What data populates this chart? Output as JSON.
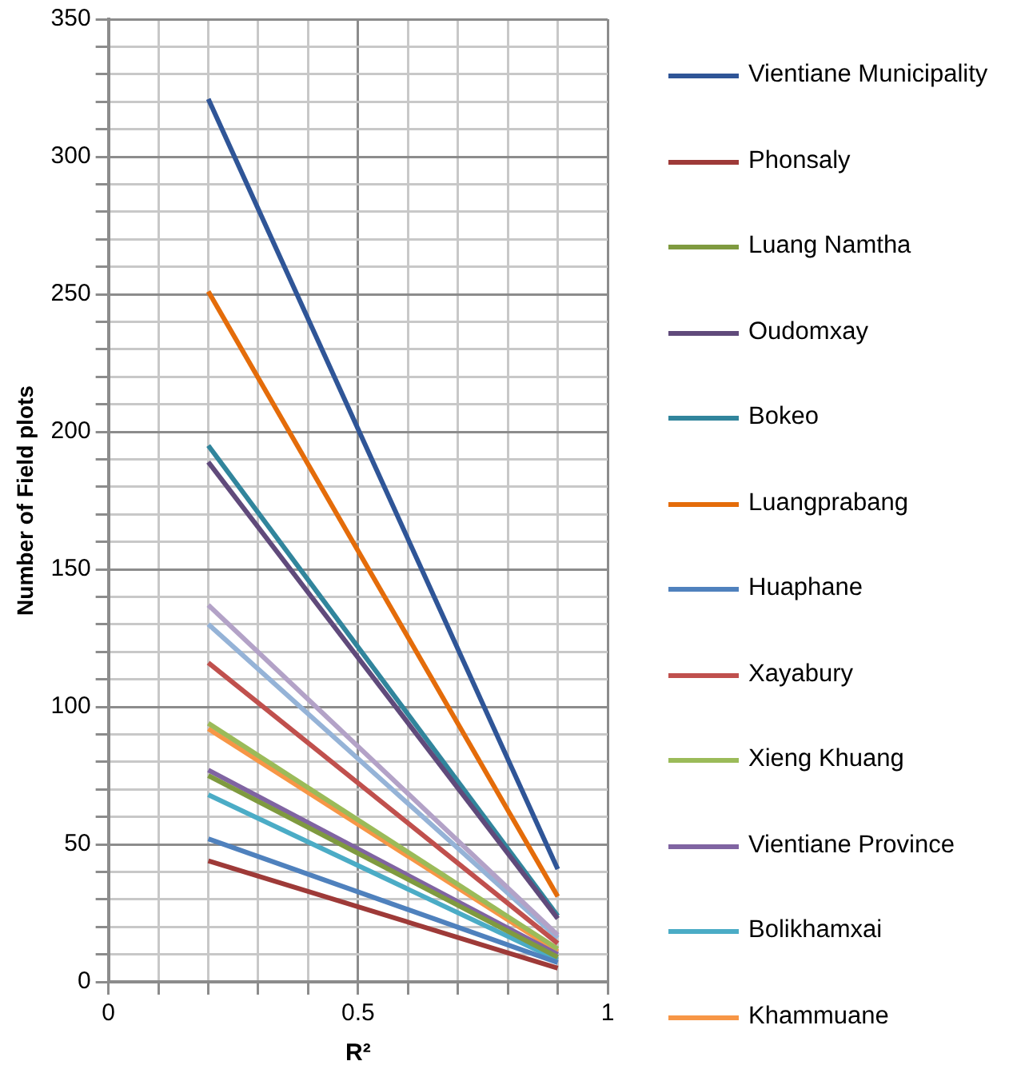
{
  "chart_data": {
    "type": "line",
    "xlabel": "R²",
    "ylabel": "Number of Field plots",
    "xlim": [
      0,
      1
    ],
    "xticks": [
      0,
      {
        "value": 0.1,
        "label": null
      },
      {
        "value": 0.2,
        "label": null
      },
      {
        "value": 0.3,
        "label": null
      },
      {
        "value": 0.4,
        "label": null
      },
      0.5,
      {
        "value": 0.6,
        "label": null
      },
      {
        "value": 0.7,
        "label": null
      },
      {
        "value": 0.8,
        "label": null
      },
      {
        "value": 0.9,
        "label": null
      },
      1
    ],
    "ylim": [
      0,
      350
    ],
    "yticks": [
      0,
      {
        "value": 10,
        "label": null
      },
      {
        "value": 20,
        "label": null
      },
      {
        "value": 30,
        "label": null
      },
      {
        "value": 40,
        "label": null
      },
      50,
      {
        "value": 60,
        "label": null
      },
      {
        "value": 70,
        "label": null
      },
      {
        "value": 80,
        "label": null
      },
      {
        "value": 90,
        "label": null
      },
      100,
      {
        "value": 110,
        "label": null
      },
      {
        "value": 120,
        "label": null
      },
      {
        "value": 130,
        "label": null
      },
      {
        "value": 140,
        "label": null
      },
      150,
      {
        "value": 160,
        "label": null
      },
      {
        "value": 170,
        "label": null
      },
      {
        "value": 180,
        "label": null
      },
      {
        "value": 190,
        "label": null
      },
      200,
      {
        "value": 210,
        "label": null
      },
      {
        "value": 220,
        "label": null
      },
      {
        "value": 230,
        "label": null
      },
      {
        "value": 240,
        "label": null
      },
      250,
      {
        "value": 260,
        "label": null
      },
      {
        "value": 270,
        "label": null
      },
      {
        "value": 280,
        "label": null
      },
      {
        "value": 290,
        "label": null
      },
      300,
      {
        "value": 310,
        "label": null
      },
      {
        "value": 320,
        "label": null
      },
      {
        "value": 330,
        "label": null
      },
      {
        "value": 340,
        "label": null
      },
      350
    ],
    "grid": true,
    "legend": "right",
    "marker": "none",
    "line_style": "solid",
    "x": [
      0.2,
      0.9
    ],
    "series": [
      {
        "name": "Vientiane Municipality",
        "color": "#2f5597",
        "values": [
          321,
          41
        ]
      },
      {
        "name": "Phonsaly",
        "color": "#9e3a38",
        "values": [
          44,
          5
        ]
      },
      {
        "name": "Luang Namtha",
        "color": "#7f9a3f",
        "values": [
          75,
          9
        ]
      },
      {
        "name": "Oudomxay",
        "color": "#604a7b",
        "values": [
          189,
          23
        ]
      },
      {
        "name": "Bokeo",
        "color": "#31859c",
        "values": [
          195,
          24
        ]
      },
      {
        "name": "Luangprabang",
        "color": "#e46c0a",
        "values": [
          251,
          31
        ]
      },
      {
        "name": "Huaphane",
        "color": "#4f81bd",
        "values": [
          52,
          7
        ]
      },
      {
        "name": "Xayabury",
        "color": "#c0504d",
        "values": [
          116,
          14
        ]
      },
      {
        "name": "Xieng Khuang",
        "color": "#9bbb59",
        "values": [
          94,
          12
        ]
      },
      {
        "name": "Vientiane Province",
        "color": "#8064a2",
        "values": [
          77,
          10
        ]
      },
      {
        "name": "Bolikhamxai",
        "color": "#4bacc6",
        "values": [
          68,
          8
        ]
      },
      {
        "name": "Khammuane",
        "color": "#f79646",
        "values": [
          92,
          11
        ]
      },
      {
        "color": "#b3a2c7",
        "values": [
          137,
          17
        ]
      },
      {
        "color": "#95b3d7",
        "values": [
          130,
          16
        ]
      }
    ]
  }
}
